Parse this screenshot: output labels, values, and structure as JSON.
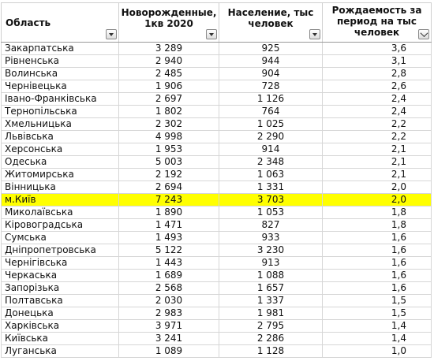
{
  "header": {
    "col1": "Область",
    "col2": "Новорожденные, 1кв 2020",
    "col3": "Население, тыс человек",
    "col4": "Рождаемость за период на тыс человек"
  },
  "highlight_color": "#ffff00",
  "rows": [
    {
      "region": "Закарпатська",
      "births": "3 289",
      "population": "925",
      "rate": "3,6"
    },
    {
      "region": "Рівненська",
      "births": "2 940",
      "population": "944",
      "rate": "3,1"
    },
    {
      "region": "Волинська",
      "births": "2 485",
      "population": "904",
      "rate": "2,8"
    },
    {
      "region": "Чернівецька",
      "births": "1 906",
      "population": "728",
      "rate": "2,6"
    },
    {
      "region": "Івано-Франківська",
      "births": "2 697",
      "population": "1 126",
      "rate": "2,4"
    },
    {
      "region": "Тернопільська",
      "births": "1 802",
      "population": "764",
      "rate": "2,4"
    },
    {
      "region": "Хмельницька",
      "births": "2 302",
      "population": "1 025",
      "rate": "2,2"
    },
    {
      "region": "Львівська",
      "births": "4 998",
      "population": "2 290",
      "rate": "2,2"
    },
    {
      "region": "Херсонська",
      "births": "1 953",
      "population": "914",
      "rate": "2,1"
    },
    {
      "region": "Одеська",
      "births": "5 003",
      "population": "2 348",
      "rate": "2,1"
    },
    {
      "region": "Житомирська",
      "births": "2 192",
      "population": "1 063",
      "rate": "2,1"
    },
    {
      "region": "Вінницька",
      "births": "2 694",
      "population": "1 331",
      "rate": "2,0"
    },
    {
      "region": "м.Київ",
      "births": "7 243",
      "population": "3 703",
      "rate": "2,0",
      "highlight": true
    },
    {
      "region": "Миколаївська",
      "births": "1 890",
      "population": "1 053",
      "rate": "1,8"
    },
    {
      "region": "Кіровоградська",
      "births": "1 471",
      "population": "827",
      "rate": "1,8"
    },
    {
      "region": "Сумська",
      "births": "1 493",
      "population": "933",
      "rate": "1,6"
    },
    {
      "region": "Дніпропетровська",
      "births": "5 122",
      "population": "3 230",
      "rate": "1,6"
    },
    {
      "region": "Чернігівська",
      "births": "1 443",
      "population": "913",
      "rate": "1,6"
    },
    {
      "region": "Черкаська",
      "births": "1 689",
      "population": "1 088",
      "rate": "1,6"
    },
    {
      "region": "Запорізька",
      "births": "2 568",
      "population": "1 657",
      "rate": "1,6"
    },
    {
      "region": "Полтавська",
      "births": "2 030",
      "population": "1 337",
      "rate": "1,5"
    },
    {
      "region": "Донецька",
      "births": "2 983",
      "population": "1 981",
      "rate": "1,5"
    },
    {
      "region": "Харківська",
      "births": "3 971",
      "population": "2 795",
      "rate": "1,4"
    },
    {
      "region": "Київська",
      "births": "3 241",
      "population": "2 286",
      "rate": "1,4"
    },
    {
      "region": "Луганська",
      "births": "1 089",
      "population": "1 128",
      "rate": "1,0"
    }
  ]
}
